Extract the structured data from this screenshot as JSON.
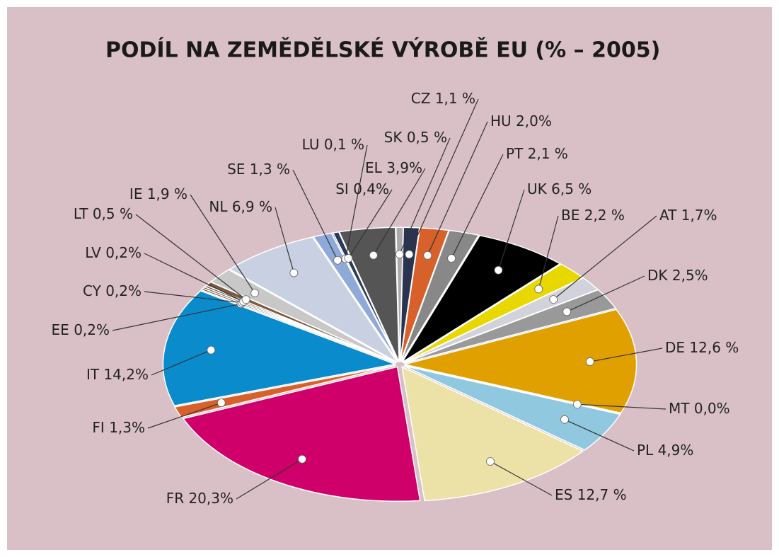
{
  "chart_data": {
    "type": "pie",
    "title": "PODÍL NA ZEMĚDĚLSKÉ VÝROBĚ EU (% – 2005)",
    "categories": [
      "IT",
      "EE",
      "CY",
      "LV",
      "LT",
      "IE",
      "NL",
      "SE",
      "LU",
      "SI",
      "EL",
      "SK",
      "CZ",
      "HU",
      "PT",
      "UK",
      "BE",
      "AT",
      "DK",
      "DE",
      "MT",
      "PL",
      "ES",
      "FR",
      "FI"
    ],
    "values": [
      14.2,
      0.2,
      0.2,
      0.2,
      0.5,
      1.9,
      6.9,
      1.3,
      0.1,
      0.4,
      3.9,
      0.5,
      1.1,
      2.0,
      2.1,
      6.5,
      2.2,
      1.7,
      2.5,
      12.6,
      0.0,
      4.9,
      12.7,
      20.3,
      1.3
    ],
    "value_labels": [
      "14,2%",
      "0,2%",
      "0,2%",
      "0,2%",
      "0,5 %",
      "1,9 %",
      "6,9 %",
      "1,3 %",
      "0,1 %",
      "0,4%",
      "3,9%",
      "0,5 %",
      "1,1 %",
      "2,0%",
      "2,1 %",
      "6,5 %",
      "2,2 %",
      "1,7%",
      "2,5%",
      "12,6 %",
      "0,0%",
      "4,9%",
      "12,7 %",
      "20,3%",
      "1,3%"
    ],
    "colors": [
      "#0a8ccc",
      "#5a3a28",
      "#6b4a30",
      "#4a3020",
      "#7a5a40",
      "#c8c8c8",
      "#c9d0e2",
      "#8faad8",
      "#333333",
      "#2a3a5a",
      "#555555",
      "#aaaaaa",
      "#2a3450",
      "#d8602a",
      "#888888",
      "#000000",
      "#e8d800",
      "#d2d2da",
      "#999999",
      "#e0a000",
      "#444444",
      "#90c8e0",
      "#ece2a8",
      "#d0006a",
      "#d8602a"
    ]
  }
}
